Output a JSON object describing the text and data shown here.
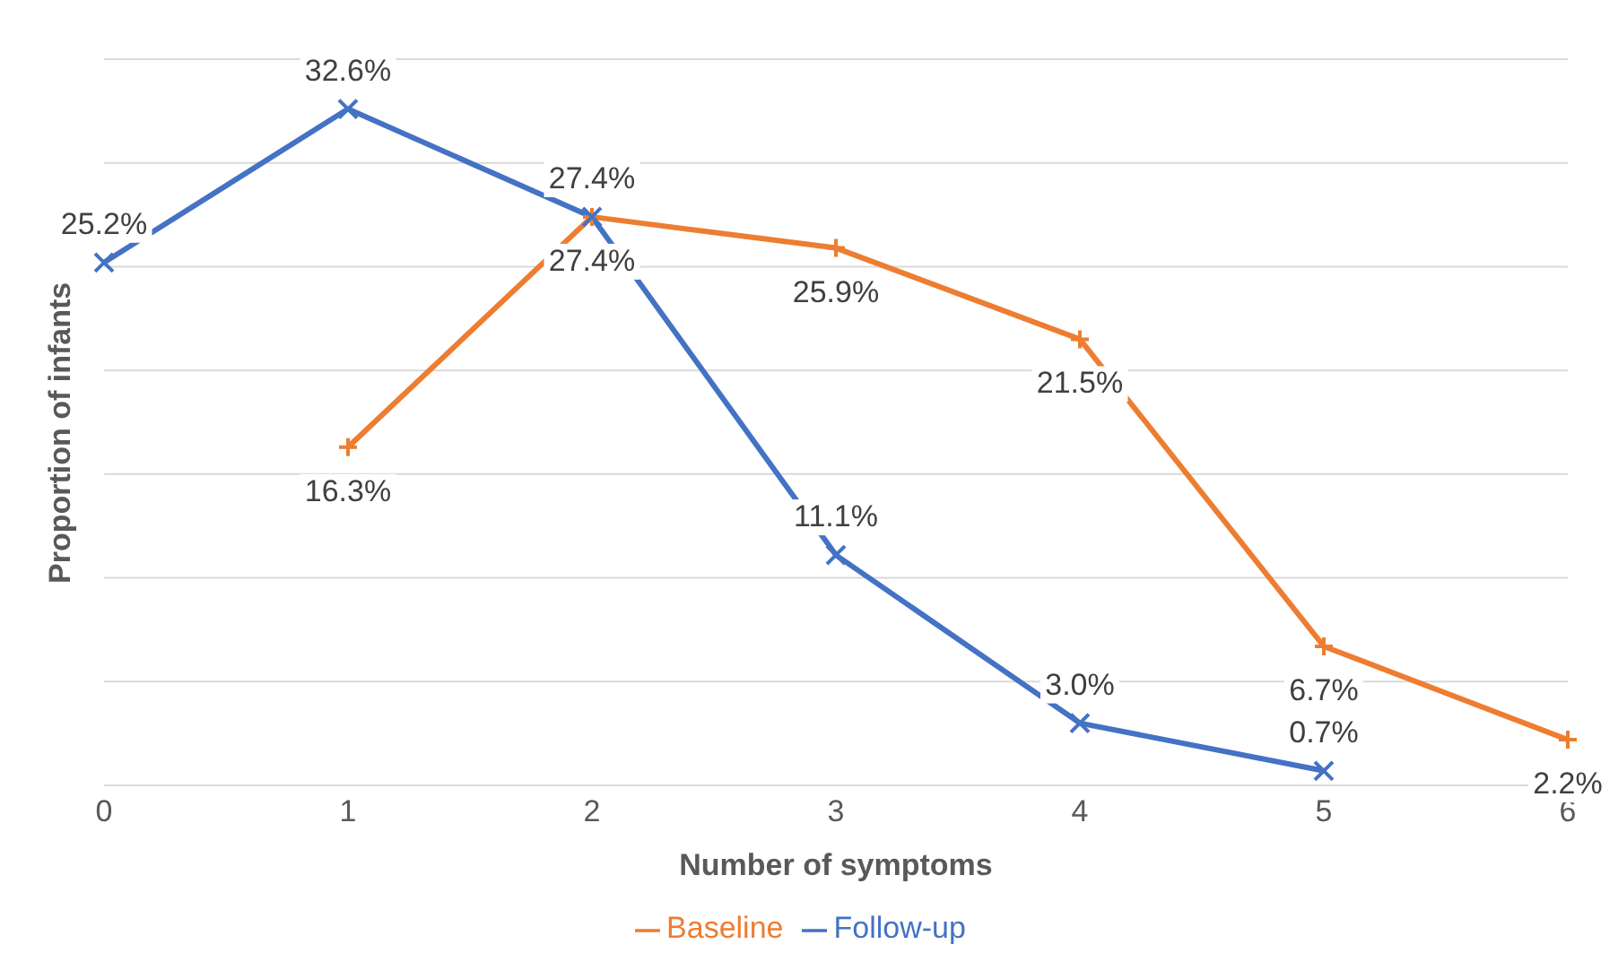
{
  "chart_data": {
    "type": "line",
    "xlabel": "Number of symptoms",
    "ylabel": "Proportion of infants",
    "categories": [
      "0",
      "1",
      "2",
      "3",
      "4",
      "5",
      "6"
    ],
    "series": [
      {
        "name": "Baseline",
        "color": "#ed7d31",
        "marker": "plus",
        "values": [
          null,
          16.3,
          27.4,
          25.9,
          21.5,
          6.7,
          2.2
        ],
        "value_labels": [
          null,
          "16.3%",
          "27.4%",
          "25.9%",
          "21.5%",
          "6.7%",
          "2.2%"
        ]
      },
      {
        "name": "Follow-up",
        "color": "#4472c4",
        "marker": "cross",
        "values": [
          25.2,
          32.6,
          27.4,
          11.1,
          3.0,
          0.7,
          null
        ],
        "value_labels": [
          "25.2%",
          "32.6%",
          "27.4%",
          "11.1%",
          "3.0%",
          "0.7%",
          null
        ]
      }
    ],
    "ylim": [
      0,
      35
    ],
    "yticks": [
      {
        "value": 0,
        "label": null
      },
      {
        "value": 5,
        "label": null
      },
      {
        "value": 10,
        "label": null
      },
      {
        "value": 15,
        "label": null
      },
      {
        "value": 20,
        "label": null
      },
      {
        "value": 25,
        "label": null
      },
      {
        "value": 30,
        "label": null
      },
      {
        "value": 35,
        "label": null
      }
    ],
    "tick_labels": "x",
    "grid": "y",
    "legend": "bottom"
  }
}
